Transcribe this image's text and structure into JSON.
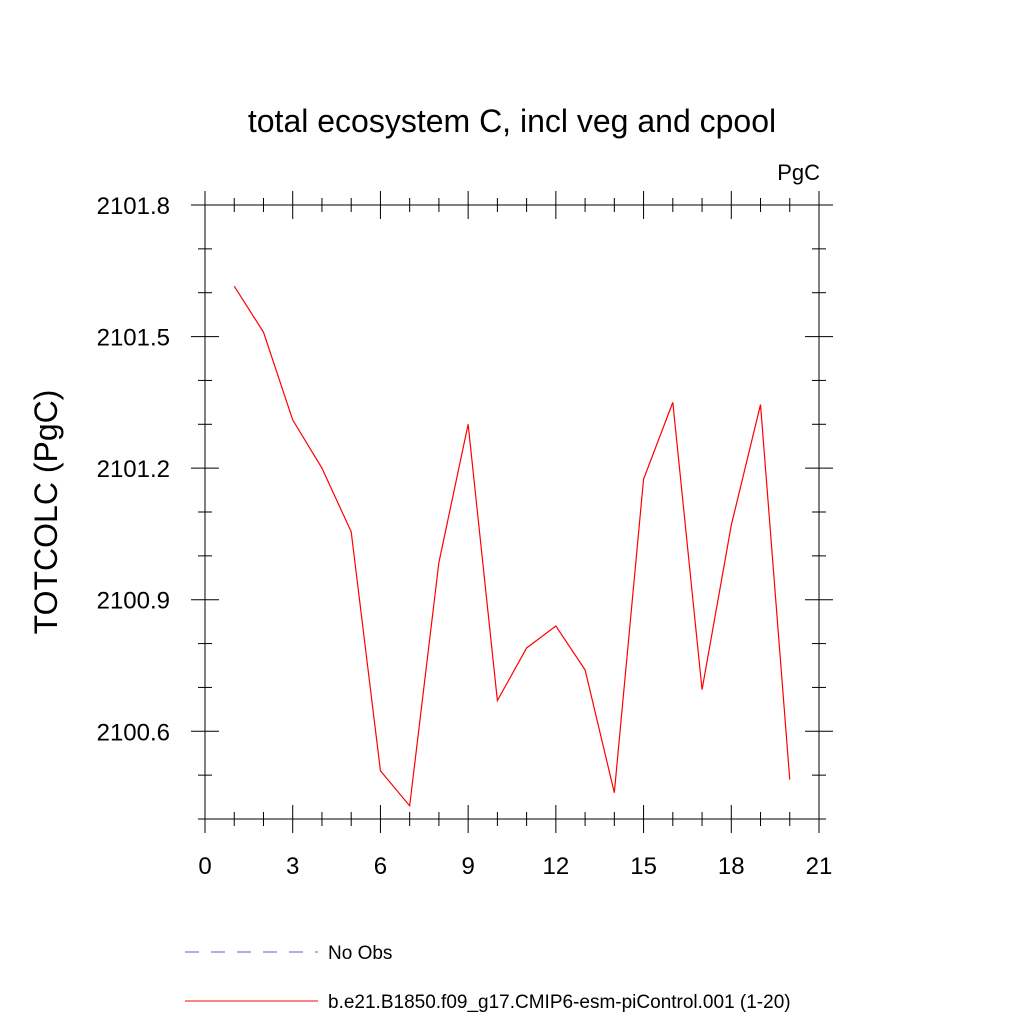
{
  "chart_data": {
    "type": "line",
    "title": "total ecosystem C, incl veg and cpool",
    "units_label": "PgC",
    "xlabel": "",
    "ylabel": "TOTCOLC  (PgC)",
    "xlim": [
      0,
      21
    ],
    "ylim": [
      2100.4,
      2101.8
    ],
    "x_ticks": [
      "0",
      "3",
      "6",
      "9",
      "12",
      "15",
      "18",
      "21"
    ],
    "y_ticks": [
      "2100.6",
      "2100.9",
      "2101.2",
      "2101.5",
      "2101.8"
    ],
    "grid": false,
    "legend_position": "bottom",
    "series": [
      {
        "name": "No Obs",
        "color": "#6a5acd",
        "style": "dashed",
        "x": [],
        "y": []
      },
      {
        "name": "b.e21.B1850.f09_g17.CMIP6-esm-piControl.001 (1-20)",
        "color": "#ff0000",
        "style": "solid",
        "x": [
          1,
          2,
          3,
          4,
          5,
          6,
          7,
          8,
          9,
          10,
          11,
          12,
          13,
          14,
          15,
          16,
          17,
          18,
          19,
          20
        ],
        "y": [
          2101.615,
          2101.51,
          2101.31,
          2101.2,
          2101.055,
          2100.51,
          2100.43,
          2100.985,
          2101.3,
          2100.67,
          2100.79,
          2100.84,
          2100.74,
          2100.46,
          2101.175,
          2101.35,
          2100.695,
          2101.07,
          2101.345,
          2100.49
        ]
      }
    ]
  }
}
